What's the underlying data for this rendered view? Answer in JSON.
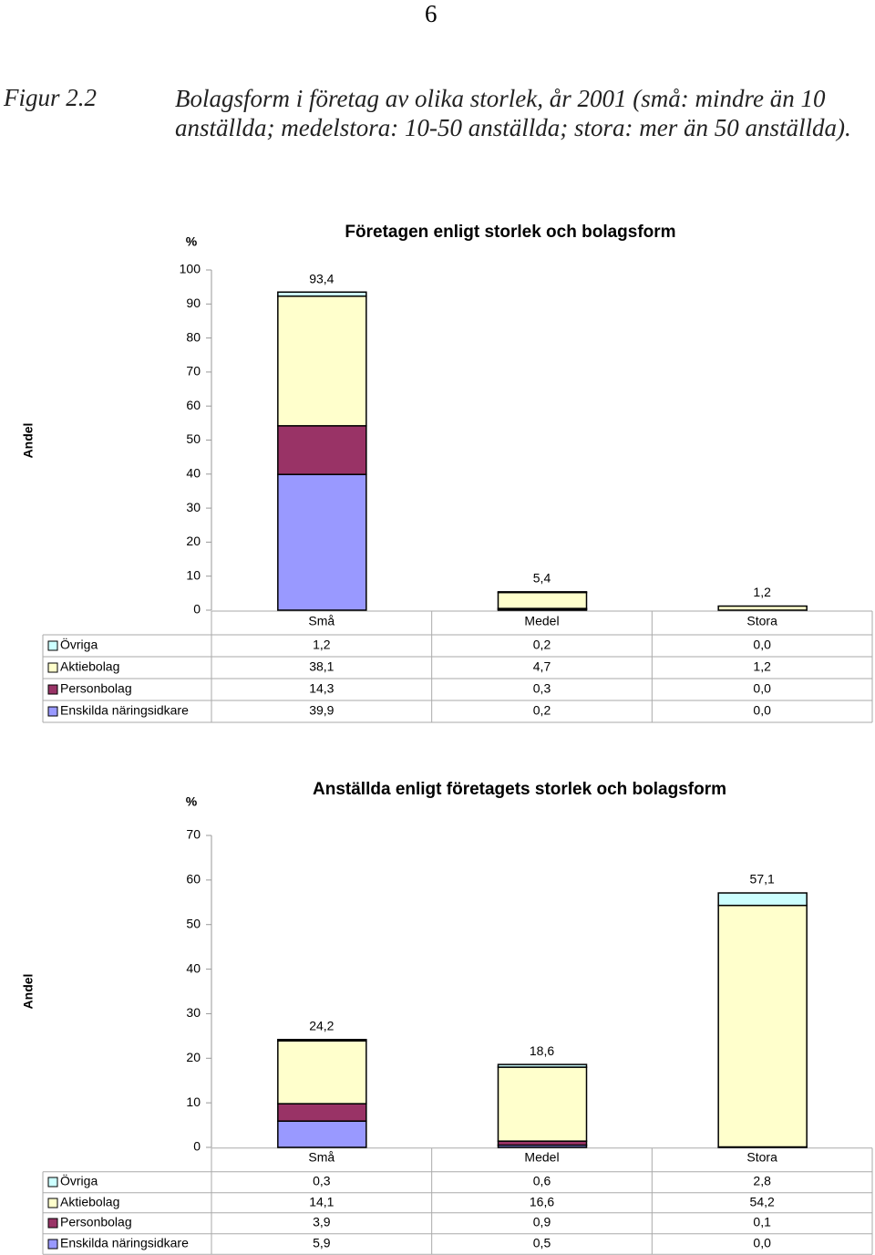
{
  "page_number": "6",
  "figure": {
    "label": "Figur 2.2",
    "caption": "Bolagsform i företag av olika storlek, år 2001 (små: mindre än 10 anställda; medelstora: 10-50 anställda; stora: mer än 50 anställda)."
  },
  "chart_data": [
    {
      "type": "bar",
      "stacked": true,
      "title": "Företagen enligt storlek och bolagsform",
      "y_unit": "%",
      "y_label": "Andel",
      "categories": [
        "Små",
        "Medel",
        "Stora"
      ],
      "series": [
        {
          "name": "Övriga",
          "color": "#ccffff",
          "values": [
            1.2,
            0.2,
            0.0
          ],
          "value_labels": [
            "1,2",
            "0,2",
            "0,0"
          ]
        },
        {
          "name": "Aktiebolag",
          "color": "#ffffcc",
          "values": [
            38.1,
            4.7,
            1.2
          ],
          "value_labels": [
            "38,1",
            "4,7",
            "1,2"
          ]
        },
        {
          "name": "Personbolag",
          "color": "#993366",
          "values": [
            14.3,
            0.3,
            0.0
          ],
          "value_labels": [
            "14,3",
            "0,3",
            "0,0"
          ]
        },
        {
          "name": "Enskilda näringsidkare",
          "color": "#9999ff",
          "values": [
            39.9,
            0.2,
            0.0
          ],
          "value_labels": [
            "39,9",
            "0,2",
            "0,0"
          ]
        }
      ],
      "totals": [
        93.4,
        5.4,
        1.2
      ],
      "total_labels": [
        "93,4",
        "5,4",
        "1,2"
      ],
      "ylim": [
        0,
        100
      ],
      "yticks": [
        0,
        10,
        20,
        30,
        40,
        50,
        60,
        70,
        80,
        90,
        100
      ]
    },
    {
      "type": "bar",
      "stacked": true,
      "title": "Anställda  enligt företagets storlek och bolagsform",
      "y_unit": "%",
      "y_label": "Andel",
      "categories": [
        "Små",
        "Medel",
        "Stora"
      ],
      "series": [
        {
          "name": "Övriga",
          "color": "#ccffff",
          "values": [
            0.3,
            0.6,
            2.8
          ],
          "value_labels": [
            "0,3",
            "0,6",
            "2,8"
          ]
        },
        {
          "name": "Aktiebolag",
          "color": "#ffffcc",
          "values": [
            14.1,
            16.6,
            54.2
          ],
          "value_labels": [
            "14,1",
            "16,6",
            "54,2"
          ]
        },
        {
          "name": "Personbolag",
          "color": "#993366",
          "values": [
            3.9,
            0.9,
            0.1
          ],
          "value_labels": [
            "3,9",
            "0,9",
            "0,1"
          ]
        },
        {
          "name": "Enskilda näringsidkare",
          "color": "#9999ff",
          "values": [
            5.9,
            0.5,
            0.0
          ],
          "value_labels": [
            "5,9",
            "0,5",
            "0,0"
          ]
        }
      ],
      "totals": [
        24.2,
        18.6,
        57.1
      ],
      "total_labels": [
        "24,2",
        "18,6",
        "57,1"
      ],
      "ylim": [
        0,
        70
      ],
      "yticks": [
        0,
        10,
        20,
        30,
        40,
        50,
        60,
        70
      ]
    }
  ]
}
